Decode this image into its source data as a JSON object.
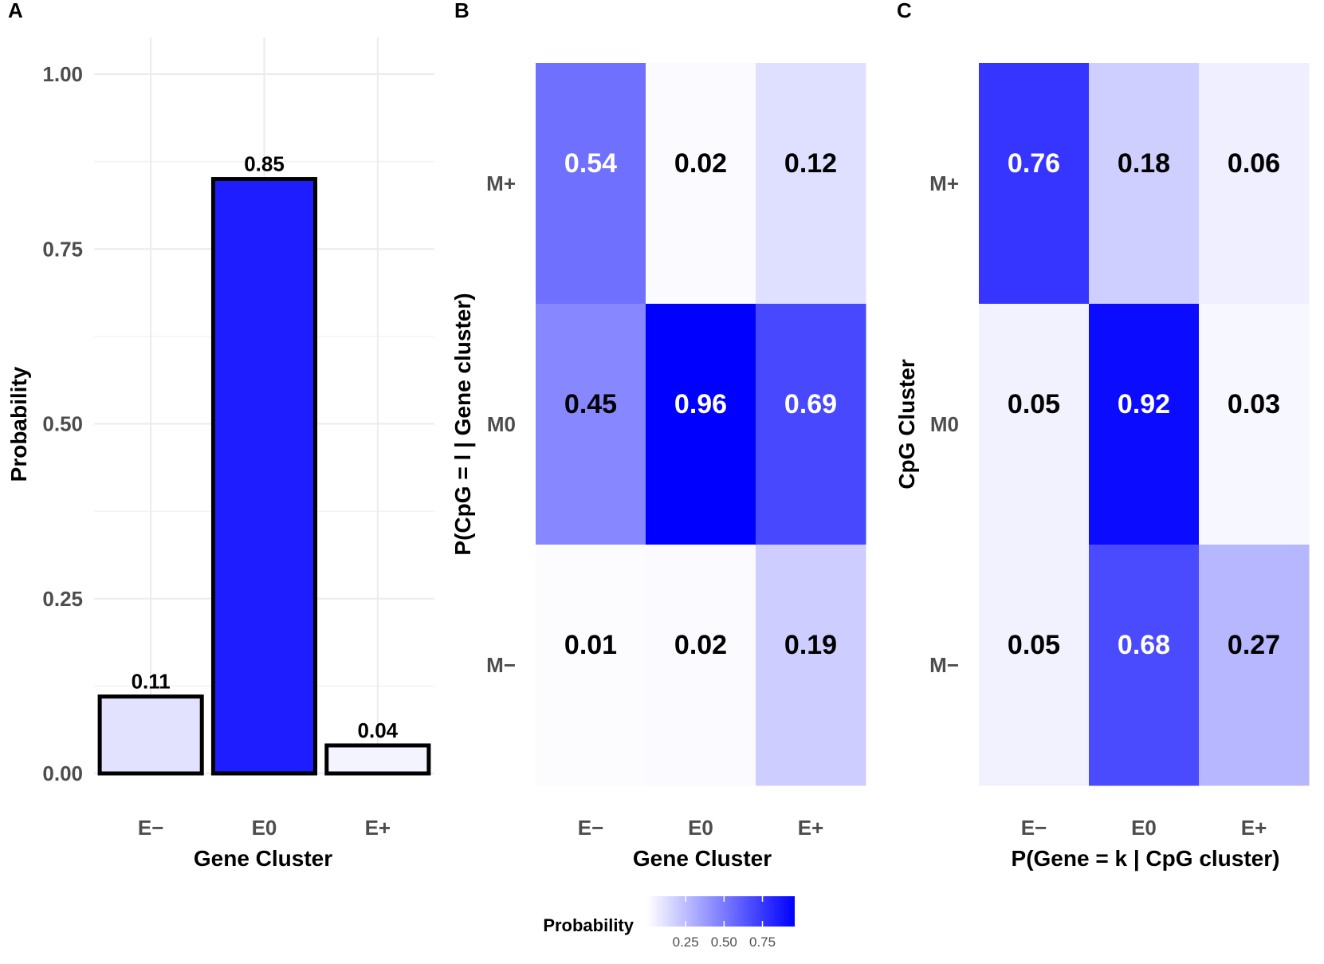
{
  "chart_data": [
    {
      "panel": "A",
      "type": "bar",
      "categories": [
        "E−",
        "E0",
        "E+"
      ],
      "values": [
        0.11,
        0.85,
        0.04
      ],
      "value_labels": [
        "0.11",
        "0.85",
        "0.04"
      ],
      "xlabel": "Gene Cluster",
      "ylabel": "Probability",
      "ylim": [
        0,
        1.0
      ],
      "yticks": [
        "0.00",
        "0.25",
        "0.50",
        "0.75",
        "1.00"
      ],
      "grid": true
    },
    {
      "panel": "B",
      "type": "heatmap",
      "x_categories": [
        "E−",
        "E0",
        "E+"
      ],
      "y_categories": [
        "M+",
        "M0",
        "M−"
      ],
      "values": [
        [
          0.54,
          0.02,
          0.12
        ],
        [
          0.45,
          0.96,
          0.69
        ],
        [
          0.01,
          0.02,
          0.19
        ]
      ],
      "value_labels": [
        [
          "0.54",
          "0.02",
          "0.12"
        ],
        [
          "0.45",
          "0.96",
          "0.69"
        ],
        [
          "0.01",
          "0.02",
          "0.19"
        ]
      ],
      "xlabel": "Gene Cluster",
      "ylabel": "P(CpG = l | Gene cluster)"
    },
    {
      "panel": "C",
      "type": "heatmap",
      "x_categories": [
        "E−",
        "E0",
        "E+"
      ],
      "y_categories": [
        "M+",
        "M0",
        "M−"
      ],
      "values": [
        [
          0.76,
          0.18,
          0.06
        ],
        [
          0.05,
          0.92,
          0.03
        ],
        [
          0.05,
          0.68,
          0.27
        ]
      ],
      "value_labels": [
        [
          "0.76",
          "0.18",
          "0.06"
        ],
        [
          "0.05",
          "0.92",
          "0.03"
        ],
        [
          "0.05",
          "0.68",
          "0.27"
        ]
      ],
      "xlabel": "P(Gene = k | CpG cluster)",
      "ylabel": "CpG Cluster"
    }
  ],
  "legend": {
    "title": "Probability",
    "ticks": [
      "0.25",
      "0.50",
      "0.75"
    ],
    "tick_values": [
      0.25,
      0.5,
      0.75
    ],
    "range": [
      0.0,
      0.96
    ],
    "colors": {
      "low": "#ffffff",
      "high": "#0000ff"
    },
    "position": "bottom"
  },
  "colors": {
    "low": "#ffffff",
    "high": "#0000ff",
    "text_dark": "#000000",
    "text_light": "#ffffff"
  }
}
